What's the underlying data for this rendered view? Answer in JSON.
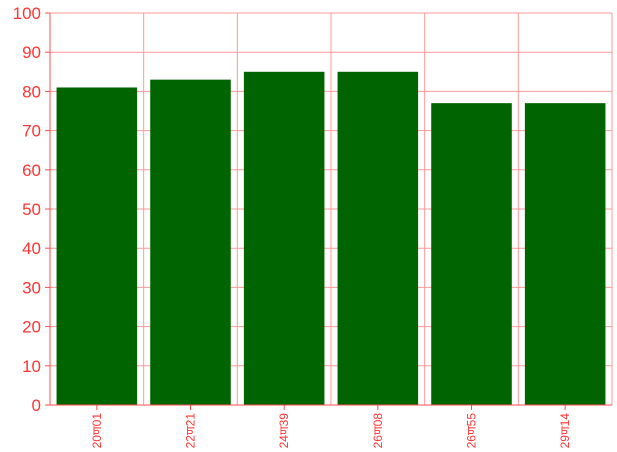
{
  "chart_data": {
    "type": "bar",
    "categories": [
      "20ण01",
      "22ण21",
      "24ण39",
      "26ण08",
      "26ण55",
      "29ण14"
    ],
    "values": [
      81,
      83,
      85,
      85,
      77,
      77
    ],
    "yticks": [
      0,
      10,
      20,
      30,
      40,
      50,
      60,
      70,
      80,
      90,
      100
    ],
    "ylim": [
      0,
      100
    ],
    "grid": true,
    "title": "",
    "xlabel": "",
    "ylabel": "",
    "colors": {
      "bar": "#006400",
      "grid": "#ff9999",
      "axis": "#ff4d4d",
      "tick_label": "#ff3333",
      "background": "#ffffff"
    }
  }
}
